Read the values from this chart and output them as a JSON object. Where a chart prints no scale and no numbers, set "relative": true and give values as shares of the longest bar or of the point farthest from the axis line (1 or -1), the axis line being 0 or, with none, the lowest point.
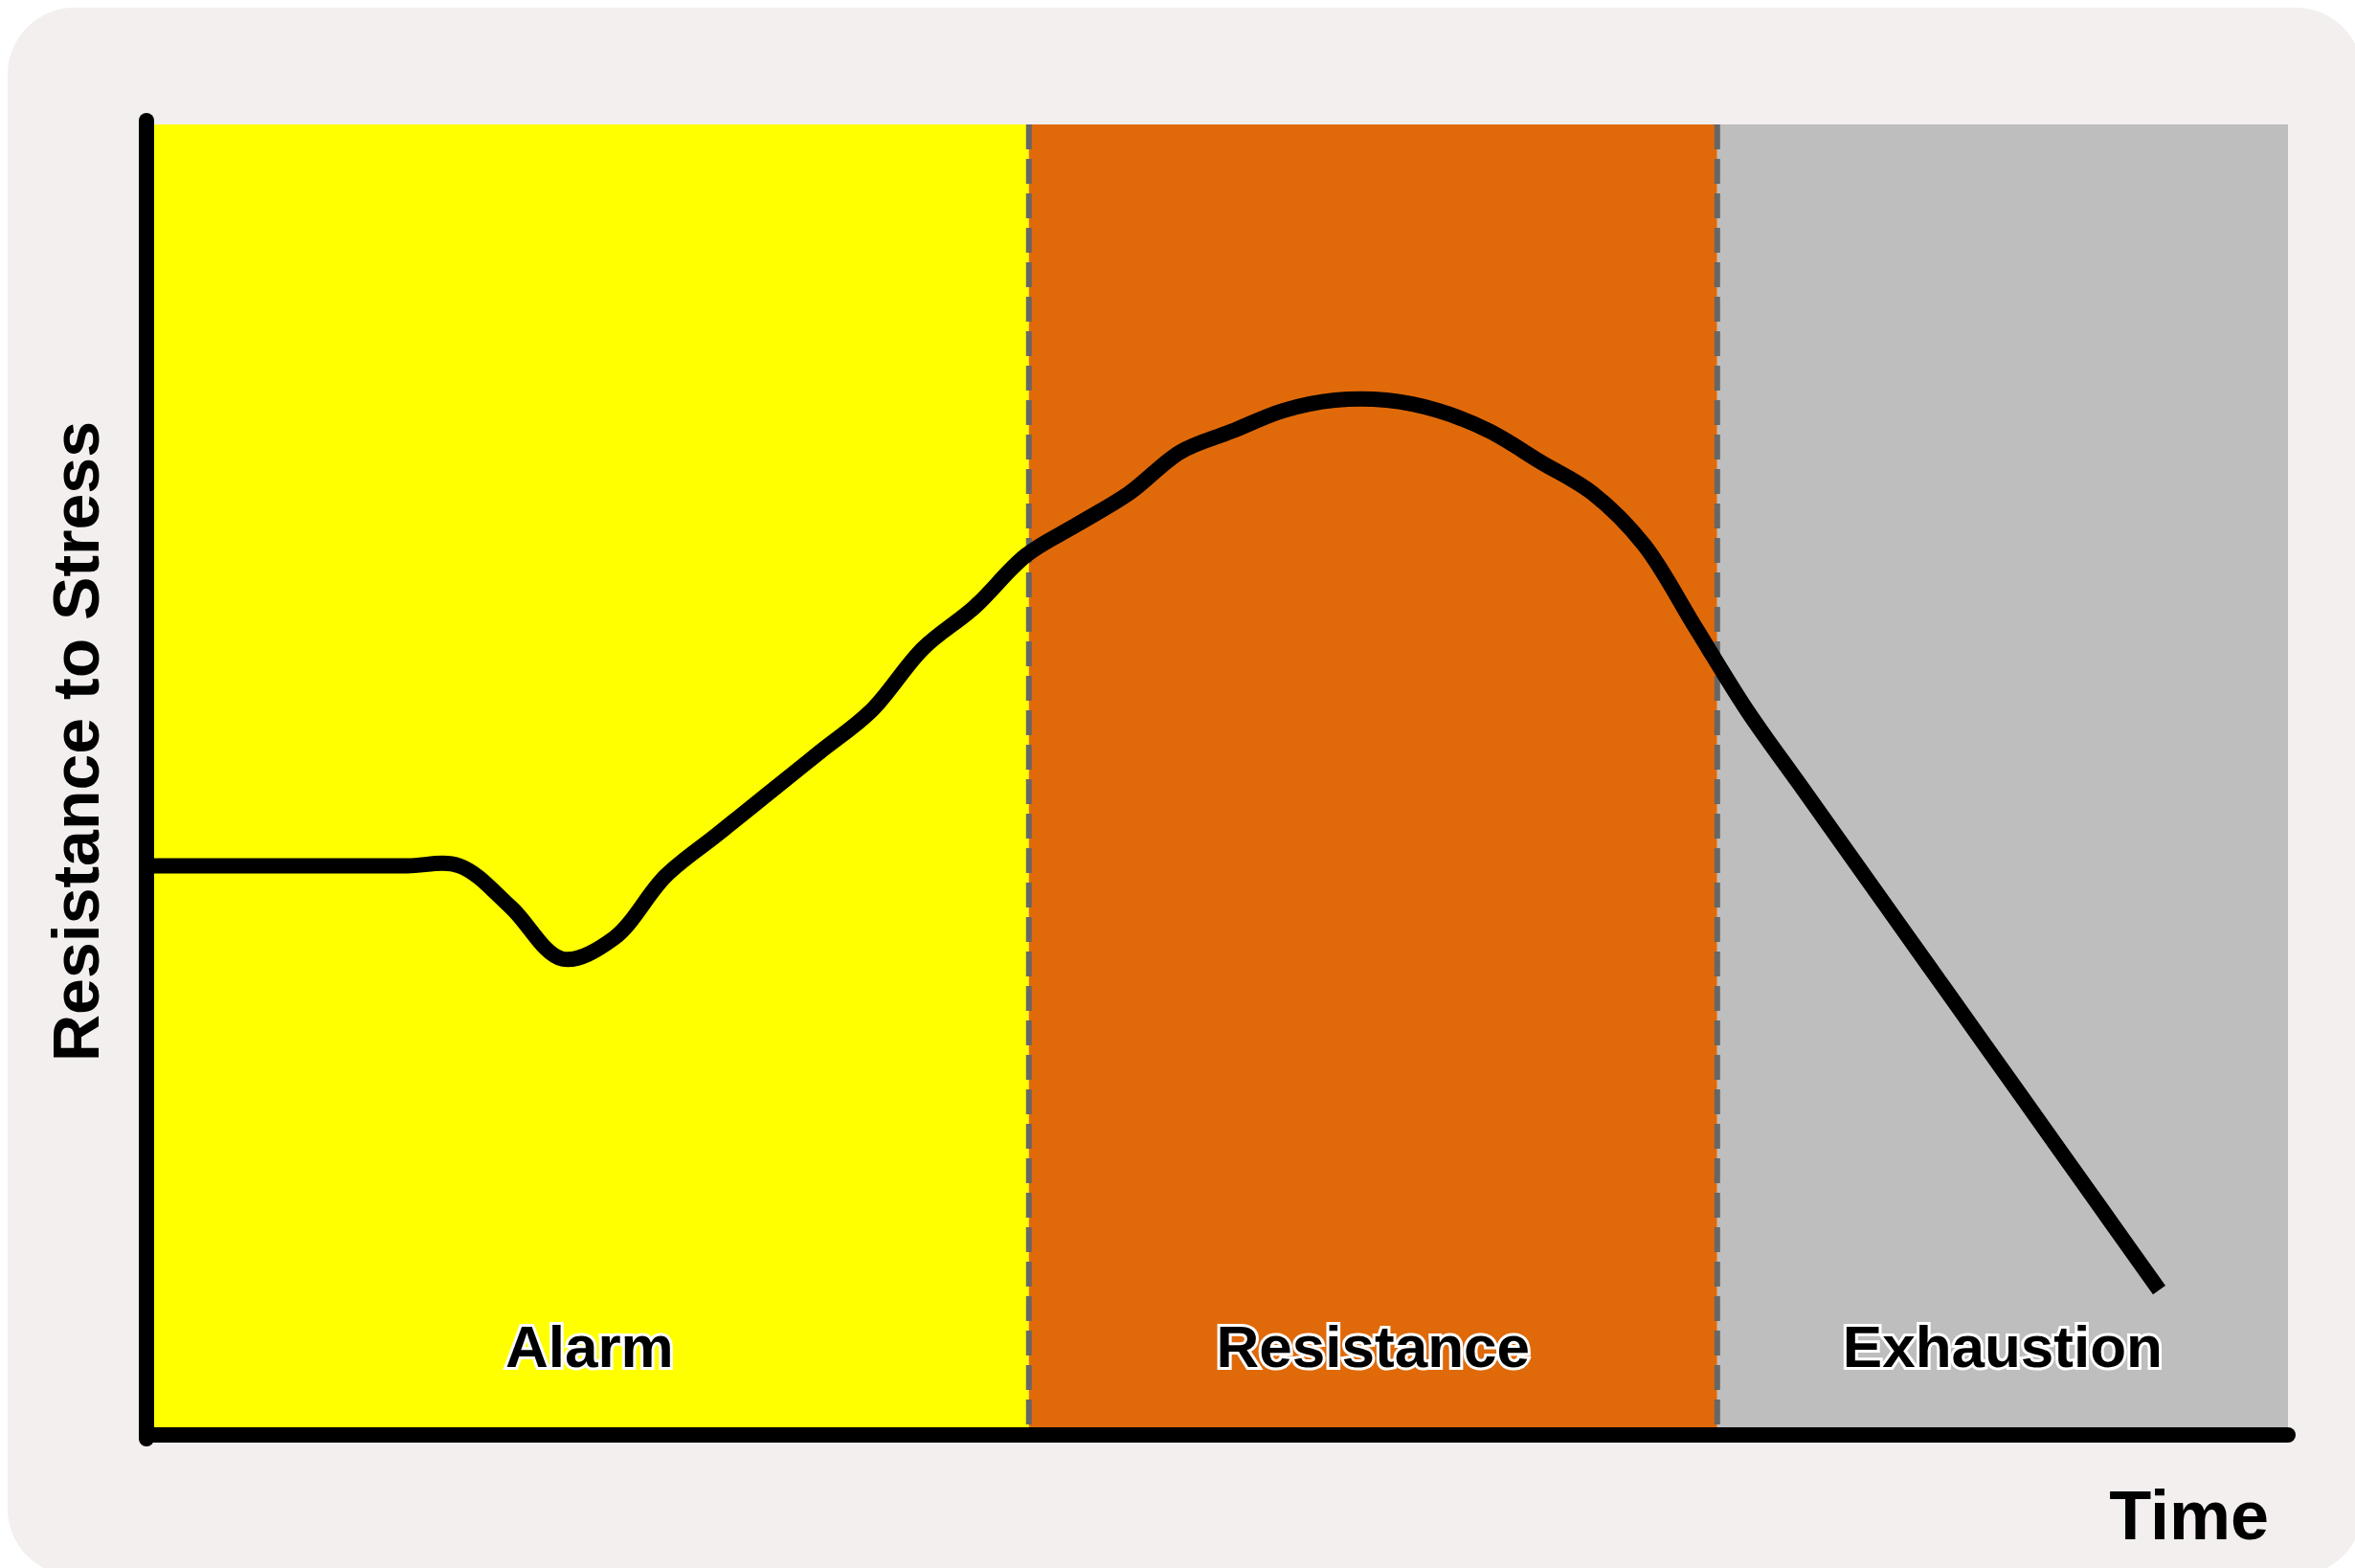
{
  "chart_data": {
    "type": "line",
    "relative": true,
    "xlabel": "Time",
    "ylabel": "Resistance to Stress",
    "categories": [
      null,
      null,
      null,
      null,
      null,
      null,
      null,
      null,
      null,
      null,
      null,
      null,
      null,
      null,
      null,
      null,
      null,
      null,
      null,
      null,
      null,
      null,
      null,
      null,
      null,
      null,
      null,
      null,
      null,
      null,
      null,
      null,
      null,
      null,
      null,
      null,
      null,
      null,
      null,
      null
    ],
    "series": [
      {
        "color": "#000000",
        "values": [
          0.55,
          0.55,
          0.55,
          0.55,
          0.55,
          0.55,
          0.55,
          0.51,
          0.46,
          0.48,
          0.54,
          0.58,
          0.62,
          0.66,
          0.7,
          0.76,
          0.8,
          0.85,
          0.88,
          0.91,
          0.95,
          0.97,
          0.99,
          1,
          1,
          0.99,
          0.97,
          0.94,
          0.91,
          0.86,
          0.78,
          0.7,
          0.63,
          0.56,
          0.49,
          0.42,
          0.35,
          0.28,
          0.21,
          0.14
        ]
      }
    ],
    "annotations": [
      "Alarm",
      "Resistance",
      "Exhaustion"
    ]
  }
}
